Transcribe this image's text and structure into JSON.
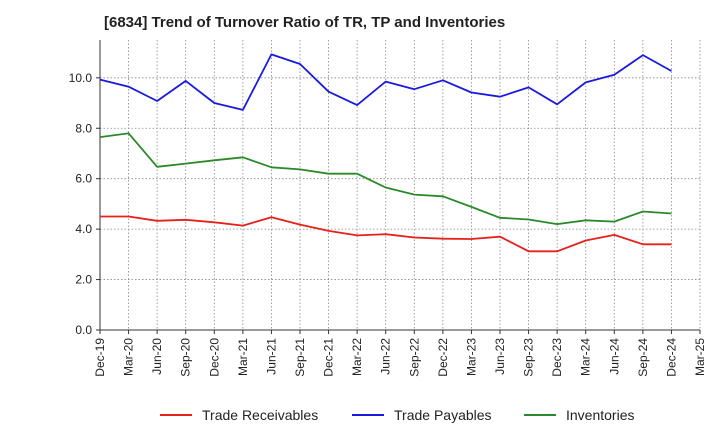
{
  "title": "[6834]  Trend of Turnover Ratio of TR, TP and Inventories",
  "chart_data": {
    "type": "line",
    "x": [
      "Dec-19",
      "Mar-20",
      "Jun-20",
      "Sep-20",
      "Dec-20",
      "Mar-21",
      "Jun-21",
      "Sep-21",
      "Dec-21",
      "Mar-22",
      "Jun-22",
      "Sep-22",
      "Dec-22",
      "Mar-23",
      "Jun-23",
      "Sep-23",
      "Dec-23",
      "Mar-24",
      "Jun-24",
      "Sep-24",
      "Dec-24"
    ],
    "x_ticks": [
      "Dec-19",
      "Mar-20",
      "Jun-20",
      "Sep-20",
      "Dec-20",
      "Mar-21",
      "Jun-21",
      "Sep-21",
      "Dec-21",
      "Mar-22",
      "Jun-22",
      "Sep-22",
      "Dec-22",
      "Mar-23",
      "Jun-23",
      "Sep-23",
      "Dec-23",
      "Mar-24",
      "Jun-24",
      "Sep-24",
      "Dec-24",
      "Mar-25"
    ],
    "y_ticks": [
      "0.0",
      "2.0",
      "4.0",
      "6.0",
      "8.0",
      "10.0"
    ],
    "ylim": [
      0,
      11.5
    ],
    "grid": true,
    "legend_position": "bottom",
    "series": [
      {
        "name": "Trade Receivables",
        "color": "#e8201a",
        "values": [
          4.5,
          4.5,
          4.33,
          4.37,
          4.27,
          4.14,
          4.47,
          4.18,
          3.93,
          3.75,
          3.8,
          3.67,
          3.62,
          3.61,
          3.7,
          3.12,
          3.12,
          3.55,
          3.77,
          3.4,
          3.4
        ]
      },
      {
        "name": "Trade Payables",
        "color": "#1a1adf",
        "values": [
          9.93,
          9.65,
          9.08,
          9.88,
          9.0,
          8.73,
          10.93,
          10.55,
          9.45,
          8.92,
          9.85,
          9.55,
          9.9,
          9.42,
          9.25,
          9.62,
          8.95,
          9.82,
          10.12,
          10.9,
          10.27
        ]
      },
      {
        "name": "Inventories",
        "color": "#2a8a2a",
        "values": [
          7.65,
          7.8,
          6.47,
          6.6,
          6.73,
          6.85,
          6.45,
          6.37,
          6.2,
          6.2,
          5.65,
          5.37,
          5.3,
          4.88,
          4.45,
          4.38,
          4.2,
          4.35,
          4.3,
          4.7,
          4.62
        ]
      }
    ]
  }
}
